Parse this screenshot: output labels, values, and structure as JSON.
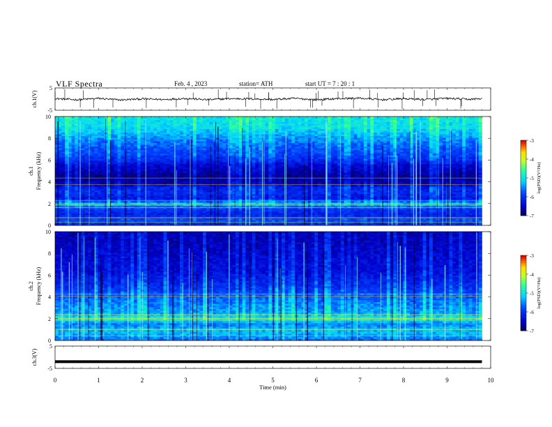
{
  "header": {
    "title": "VLF  Spectra",
    "date": "Feb. 4  , 2023",
    "station": "station= ATH",
    "start": "start  UT  =    7  : 20 : 1"
  },
  "chart_data": [
    {
      "type": "line",
      "title": "",
      "ylabel": "ch.1(V)",
      "ylim": [
        -5,
        5
      ],
      "yticks": [
        "5",
        "-5"
      ],
      "x": [
        0,
        0.5,
        1,
        1.5,
        2,
        2.5,
        3,
        3.5,
        4,
        4.5,
        5,
        5.5,
        6,
        6.5,
        7,
        7.5,
        8,
        8.5,
        9,
        9.5,
        9.8
      ],
      "values": [
        0.2,
        -0.3,
        0.3,
        -0.4,
        0.1,
        -0.2,
        0.3,
        -0.3,
        0.2,
        0.1,
        -0.2,
        0.3,
        -0.3,
        0.2,
        0.4,
        -0.3,
        0.2,
        -0.2,
        0.3,
        -0.1,
        0.2
      ]
    },
    {
      "type": "heatmap",
      "ylabel": "Frequency  (kHz)",
      "channel_label": "ch.1",
      "ylim": [
        0,
        10
      ],
      "yticks": [
        "0",
        "2",
        "4",
        "6",
        "8",
        "10"
      ],
      "colorbar": {
        "label": "log(PSD)(V²/Hz)",
        "ticks": [
          "-3",
          "-4",
          "-5",
          "-6",
          "-7"
        ],
        "range": [
          -7,
          -3
        ]
      },
      "profile_freq_khz": [
        0,
        0.5,
        1,
        1.5,
        2,
        2.5,
        3,
        3.5,
        4,
        4.5,
        5,
        5.5,
        6,
        6.5,
        7,
        8,
        9,
        10
      ],
      "profile_log_psd": [
        -6.2,
        -5.8,
        -6.2,
        -6.0,
        -5.3,
        -6.3,
        -6.1,
        -6.2,
        -6.7,
        -6.8,
        -6.6,
        -6.5,
        -6.1,
        -5.9,
        -5.8,
        -5.5,
        -5.1,
        -5.0
      ]
    },
    {
      "type": "heatmap",
      "ylabel": "Frequency  (kHz)",
      "channel_label": "ch.2",
      "ylim": [
        0,
        10
      ],
      "yticks": [
        "0",
        "2",
        "4",
        "6",
        "8",
        "10"
      ],
      "colorbar": {
        "label": "log(PSD)(V²/Hz)",
        "ticks": [
          "-3",
          "-4",
          "-5",
          "-6",
          "-7"
        ],
        "range": [
          -7,
          -3
        ]
      },
      "profile_freq_khz": [
        0,
        0.5,
        1,
        1.5,
        2,
        2.5,
        3,
        3.5,
        4,
        4.5,
        5,
        5.5,
        6,
        6.5,
        7,
        8,
        9,
        10
      ],
      "profile_log_psd": [
        -5.7,
        -5.4,
        -5.3,
        -5.6,
        -5.0,
        -5.4,
        -5.5,
        -5.6,
        -5.7,
        -5.9,
        -6.1,
        -6.2,
        -6.3,
        -6.4,
        -6.4,
        -6.5,
        -6.6,
        -6.6
      ]
    },
    {
      "type": "line",
      "ylabel": "ch.3(V)",
      "ylim": [
        -5,
        5
      ],
      "yticks": [
        "5",
        "-5"
      ],
      "x": [
        0,
        9.8
      ],
      "values": [
        -2,
        -2
      ]
    }
  ],
  "x_axis": {
    "label": "Time  (min)",
    "range": [
      0,
      10
    ],
    "ticks": [
      "0",
      "1",
      "2",
      "3",
      "4",
      "5",
      "6",
      "7",
      "8",
      "9",
      "10"
    ]
  }
}
